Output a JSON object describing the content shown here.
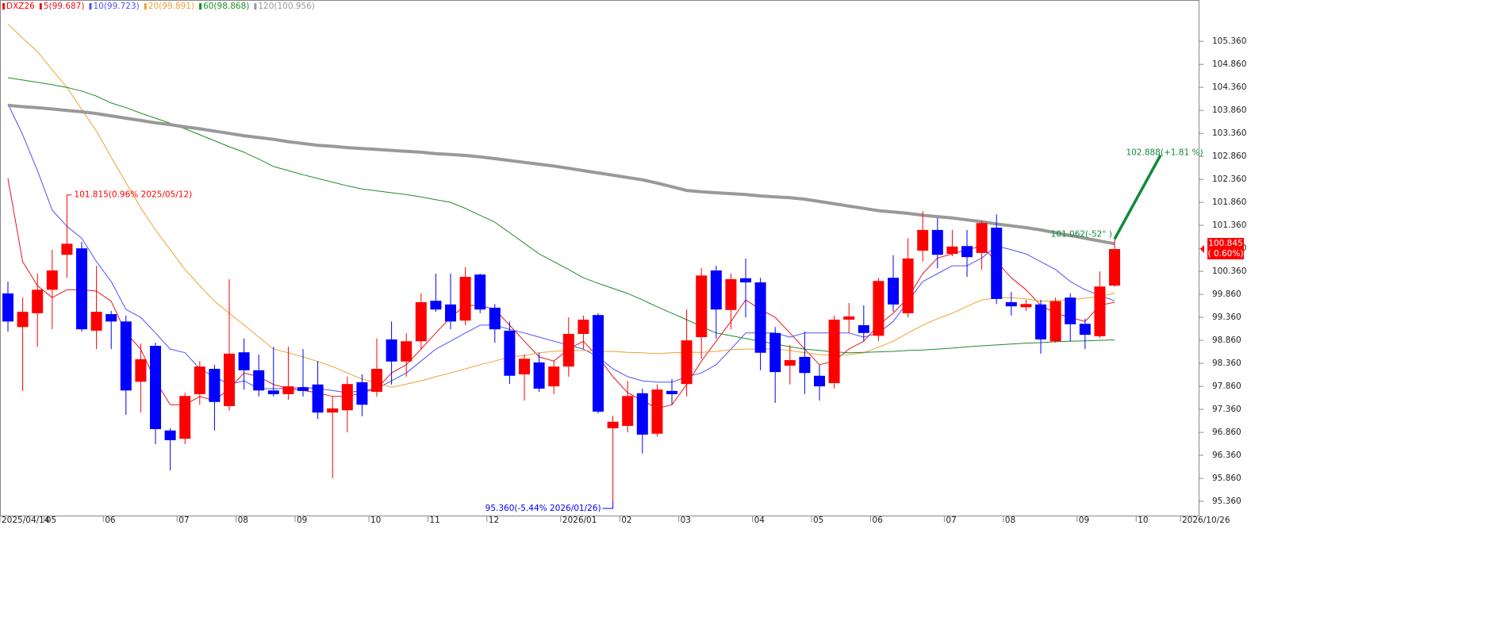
{
  "chart_data": {
    "type": "candlestick",
    "title": "DXZ26",
    "categories": [
      "2025/04/14",
      null,
      null,
      "05",
      null,
      null,
      null,
      "06",
      null,
      null,
      null,
      null,
      "07",
      null,
      null,
      null,
      "08",
      null,
      null,
      null,
      "09",
      null,
      null,
      null,
      null,
      "10",
      null,
      null,
      null,
      "11",
      null,
      null,
      null,
      "12",
      null,
      null,
      null,
      null,
      "2026/01",
      null,
      null,
      null,
      "02",
      null,
      null,
      null,
      "03",
      null,
      null,
      null,
      null,
      "04",
      null,
      null,
      null,
      "05",
      null,
      null,
      null,
      "06",
      null,
      null,
      null,
      null,
      "07",
      null,
      null,
      null,
      "08",
      null,
      null,
      null,
      null,
      "09",
      null,
      null,
      null,
      "10",
      null,
      null,
      "2026/10/26"
    ],
    "open": [
      99.88,
      99.15,
      99.45,
      99.96,
      100.72,
      100.86,
      99.07,
      99.43,
      99.27,
      97.96,
      98.74,
      96.9,
      96.72,
      97.69,
      98.24,
      97.43,
      98.6,
      98.21,
      97.77,
      97.69,
      97.84,
      97.9,
      97.29,
      97.34,
      97.95,
      97.74,
      98.88,
      98.4,
      98.84,
      99.72,
      99.64,
      99.29,
      100.29,
      99.57,
      99.07,
      98.12,
      98.38,
      97.86,
      98.29,
      99.0,
      99.41,
      96.95,
      97.0,
      97.71,
      96.83,
      97.76,
      97.91,
      98.93,
      100.38,
      99.52,
      100.21,
      100.12,
      99.02,
      98.31,
      98.5,
      98.09,
      97.93,
      99.31,
      99.19,
      98.96,
      100.22,
      99.45,
      100.81,
      101.26,
      100.74,
      100.91,
      100.76,
      101.31,
      99.69,
      99.58,
      99.64,
      98.84,
      99.79,
      99.22,
      98.95,
      100.05,
      null,
      null,
      null,
      null,
      null
    ],
    "high": [
      100.14,
      99.79,
      100.31,
      100.83,
      101.815,
      101.0,
      100.48,
      99.5,
      99.4,
      98.79,
      98.81,
      96.95,
      97.72,
      98.41,
      98.33,
      100.19,
      98.9,
      98.55,
      98.72,
      98.72,
      98.67,
      98.41,
      97.64,
      98.07,
      98.12,
      98.9,
      99.27,
      99.02,
      99.88,
      100.31,
      100.31,
      100.45,
      100.31,
      99.65,
      99.27,
      98.55,
      98.59,
      98.41,
      99.36,
      99.4,
      99.45,
      97.22,
      97.98,
      97.81,
      97.9,
      98.02,
      99.53,
      100.43,
      100.48,
      100.31,
      100.64,
      100.22,
      99.15,
      98.76,
      99.05,
      98.33,
      99.4,
      99.67,
      99.62,
      100.22,
      100.71,
      101.08,
      101.67,
      101.52,
      101.26,
      101.26,
      101.46,
      101.6,
      99.91,
      99.74,
      99.74,
      99.79,
      99.88,
      99.33,
      100.36,
      101.06,
      null,
      null,
      null,
      null,
      null
    ],
    "low": [
      99.05,
      97.76,
      98.72,
      99.1,
      100.22,
      99.05,
      98.67,
      98.67,
      97.24,
      97.29,
      96.6,
      96.03,
      96.6,
      97.46,
      96.9,
      97.33,
      97.79,
      97.64,
      97.64,
      97.57,
      97.64,
      97.15,
      95.86,
      96.86,
      97.21,
      97.64,
      97.9,
      98.07,
      98.67,
      99.48,
      99.1,
      99.19,
      99.45,
      98.81,
      97.91,
      97.55,
      97.74,
      97.69,
      98.07,
      98.67,
      97.27,
      95.36,
      96.86,
      96.4,
      96.77,
      97.46,
      97.64,
      98.46,
      98.9,
      99.1,
      99.36,
      98.21,
      97.5,
      97.9,
      97.69,
      97.55,
      97.81,
      99.02,
      98.84,
      98.84,
      99.48,
      99.36,
      100.57,
      100.43,
      100.69,
      100.24,
      100.4,
      99.65,
      99.4,
      99.5,
      98.57,
      98.81,
      98.84,
      98.67,
      98.91,
      100.02,
      null,
      null,
      null,
      null,
      null
    ],
    "close": [
      99.27,
      99.48,
      99.96,
      100.38,
      100.96,
      99.1,
      99.48,
      99.27,
      97.77,
      98.45,
      96.93,
      96.69,
      97.65,
      98.29,
      97.52,
      98.57,
      98.21,
      97.77,
      97.69,
      97.86,
      97.76,
      97.29,
      97.38,
      97.91,
      97.46,
      98.24,
      98.4,
      98.84,
      99.69,
      99.53,
      99.27,
      100.24,
      99.53,
      99.1,
      98.09,
      98.46,
      97.81,
      98.29,
      99.0,
      99.31,
      97.31,
      97.09,
      97.65,
      96.81,
      97.79,
      97.69,
      98.86,
      100.27,
      99.53,
      100.19,
      100.12,
      98.59,
      98.17,
      98.43,
      98.15,
      97.86,
      99.31,
      99.38,
      99.02,
      100.15,
      99.64,
      100.64,
      101.26,
      100.72,
      100.9,
      100.67,
      101.41,
      99.76,
      99.6,
      99.65,
      98.88,
      99.71,
      99.21,
      98.98,
      100.03,
      100.845,
      null,
      null,
      null,
      null,
      null
    ],
    "up_color": "#ff0000",
    "down_color": "#0000ff",
    "series": [
      {
        "name": "5(99.687)",
        "color": "#e8141e",
        "width": 1,
        "values": [
          102.38,
          100.57,
          100.05,
          99.79,
          99.96,
          99.96,
          99.93,
          99.71,
          99.02,
          98.67,
          97.98,
          97.46,
          97.46,
          97.64,
          97.55,
          97.81,
          98.15,
          98.07,
          97.9,
          97.81,
          97.77,
          97.72,
          97.64,
          97.64,
          97.72,
          97.81,
          98.15,
          98.33,
          98.67,
          99.02,
          99.36,
          99.62,
          99.62,
          99.53,
          99.19,
          98.84,
          98.5,
          98.41,
          98.67,
          98.84,
          98.5,
          98.07,
          97.72,
          97.55,
          97.38,
          97.46,
          97.9,
          98.41,
          98.84,
          99.27,
          99.74,
          99.53,
          99.36,
          99.02,
          98.67,
          98.33,
          98.41,
          98.67,
          98.84,
          99.19,
          99.45,
          99.79,
          100.31,
          100.65,
          100.74,
          100.83,
          100.91,
          100.57,
          100.22,
          99.96,
          99.62,
          99.45,
          99.36,
          99.27,
          99.62,
          99.69,
          null,
          null,
          null,
          null,
          null
        ]
      },
      {
        "name": "10(99.723)",
        "color": "#5050ff",
        "width": 1,
        "values": [
          104.0,
          103.33,
          102.55,
          101.69,
          101.34,
          101.08,
          100.57,
          100.14,
          99.53,
          99.36,
          99.02,
          98.67,
          98.59,
          98.24,
          98.07,
          97.9,
          97.98,
          97.81,
          97.81,
          97.81,
          97.84,
          97.81,
          97.77,
          97.72,
          97.77,
          97.81,
          97.98,
          98.15,
          98.41,
          98.67,
          98.84,
          99.02,
          99.19,
          99.19,
          99.1,
          99.02,
          98.93,
          98.84,
          98.76,
          98.67,
          98.5,
          98.24,
          98.07,
          97.98,
          97.95,
          97.95,
          98.07,
          98.15,
          98.33,
          98.67,
          99.02,
          99.02,
          99.02,
          98.93,
          99.02,
          99.02,
          99.02,
          99.02,
          98.93,
          99.02,
          99.27,
          99.71,
          100.14,
          100.31,
          100.48,
          100.48,
          100.65,
          100.91,
          100.83,
          100.74,
          100.57,
          100.4,
          100.14,
          99.96,
          99.84,
          99.72,
          null,
          null,
          null,
          null,
          null
        ]
      },
      {
        "name": "20(99.891)",
        "color": "#f0a030",
        "width": 1,
        "values": [
          105.74,
          105.43,
          105.14,
          104.74,
          104.36,
          103.88,
          103.41,
          102.84,
          102.29,
          101.74,
          101.26,
          100.83,
          100.4,
          100.05,
          99.71,
          99.45,
          99.19,
          98.93,
          98.67,
          98.59,
          98.5,
          98.4,
          98.29,
          98.15,
          98.02,
          97.93,
          97.84,
          97.91,
          97.98,
          98.07,
          98.15,
          98.24,
          98.33,
          98.41,
          98.5,
          98.53,
          98.59,
          98.62,
          98.64,
          98.64,
          98.62,
          98.62,
          98.6,
          98.59,
          98.57,
          98.59,
          98.6,
          98.6,
          98.62,
          98.66,
          98.67,
          98.67,
          98.67,
          98.64,
          98.59,
          98.55,
          98.53,
          98.55,
          98.59,
          98.71,
          98.84,
          99.02,
          99.19,
          99.33,
          99.45,
          99.6,
          99.74,
          99.78,
          99.79,
          99.76,
          99.71,
          99.72,
          99.74,
          99.78,
          99.81,
          99.89,
          null,
          null,
          null,
          null,
          null
        ]
      },
      {
        "name": "60(98.868)",
        "color": "#1e8c2a",
        "width": 1,
        "values": [
          104.57,
          104.52,
          104.47,
          104.42,
          104.36,
          104.28,
          104.17,
          104.02,
          103.92,
          103.8,
          103.69,
          103.58,
          103.46,
          103.33,
          103.2,
          103.07,
          102.95,
          102.8,
          102.64,
          102.55,
          102.46,
          102.38,
          102.3,
          102.22,
          102.15,
          102.11,
          102.07,
          102.03,
          101.98,
          101.92,
          101.86,
          101.73,
          101.58,
          101.43,
          101.2,
          100.97,
          100.74,
          100.57,
          100.4,
          100.22,
          100.1,
          99.99,
          99.88,
          99.74,
          99.59,
          99.45,
          99.31,
          99.16,
          99.02,
          98.96,
          98.9,
          98.84,
          98.78,
          98.72,
          98.67,
          98.64,
          98.61,
          98.59,
          98.6,
          98.61,
          98.62,
          98.64,
          98.65,
          98.67,
          98.69,
          98.72,
          98.74,
          98.76,
          98.78,
          98.8,
          98.81,
          98.83,
          98.84,
          98.85,
          98.86,
          98.87,
          null,
          null,
          null,
          null,
          null
        ]
      },
      {
        "name": "120(100.956)",
        "color": "#999999",
        "width": 4,
        "values": [
          103.97,
          103.94,
          103.92,
          103.89,
          103.86,
          103.83,
          103.79,
          103.74,
          103.69,
          103.64,
          103.59,
          103.55,
          103.5,
          103.46,
          103.41,
          103.36,
          103.31,
          103.27,
          103.23,
          103.18,
          103.14,
          103.1,
          103.08,
          103.05,
          103.03,
          103.01,
          102.99,
          102.97,
          102.95,
          102.92,
          102.9,
          102.88,
          102.85,
          102.81,
          102.77,
          102.73,
          102.69,
          102.65,
          102.6,
          102.55,
          102.5,
          102.45,
          102.4,
          102.35,
          102.28,
          102.2,
          102.12,
          102.09,
          102.07,
          102.05,
          102.03,
          102.0,
          101.98,
          101.96,
          101.93,
          101.88,
          101.83,
          101.78,
          101.73,
          101.68,
          101.65,
          101.62,
          101.58,
          101.55,
          101.52,
          101.48,
          101.44,
          101.39,
          101.35,
          101.31,
          101.26,
          101.2,
          101.14,
          101.08,
          101.02,
          100.96,
          null,
          null,
          null,
          null,
          null
        ]
      }
    ],
    "ylim": [
      95.05,
      106.26
    ],
    "yticks": [
      {
        "value": 95.36,
        "label": "95.360"
      },
      {
        "value": 95.86,
        "label": "95.860"
      },
      {
        "value": 96.36,
        "label": "96.360"
      },
      {
        "value": 96.86,
        "label": "96.860"
      },
      {
        "value": 97.36,
        "label": "97.360"
      },
      {
        "value": 97.86,
        "label": "97.860"
      },
      {
        "value": 98.36,
        "label": "98.360"
      },
      {
        "value": 98.86,
        "label": "98.860"
      },
      {
        "value": 99.36,
        "label": "99.360"
      },
      {
        "value": 99.86,
        "label": "99.860"
      },
      {
        "value": 100.36,
        "label": "100.360"
      },
      {
        "value": 100.86,
        "label": "100.860"
      },
      {
        "value": 101.36,
        "label": "101.360"
      },
      {
        "value": 101.86,
        "label": "101.860"
      },
      {
        "value": 102.36,
        "label": "102.360"
      },
      {
        "value": 102.86,
        "label": "102.860"
      },
      {
        "value": 103.36,
        "label": "103.360"
      },
      {
        "value": 103.86,
        "label": "103.860"
      },
      {
        "value": 104.36,
        "label": "104.360"
      },
      {
        "value": 104.86,
        "label": "104.860"
      },
      {
        "value": 105.36,
        "label": "105.360"
      }
    ],
    "grid": false,
    "annotations": [
      {
        "text": "101.815(0.96% 2025/05/12)",
        "value": 101.815,
        "kind": "high",
        "color": "#ff0000"
      },
      {
        "text": "95.360(-5.44% 2026/01/26)",
        "value": 95.36,
        "kind": "low",
        "color": "#0000ff"
      }
    ],
    "trendline": {
      "start": 101.062,
      "end": 102.888,
      "start_label": "101.062(-52° )",
      "end_label": "102.888(+1.81 %)",
      "color": "#108a3a"
    },
    "last_price": 100.845,
    "last_change": "( 0.60%)",
    "last_color": "#ff0000"
  }
}
